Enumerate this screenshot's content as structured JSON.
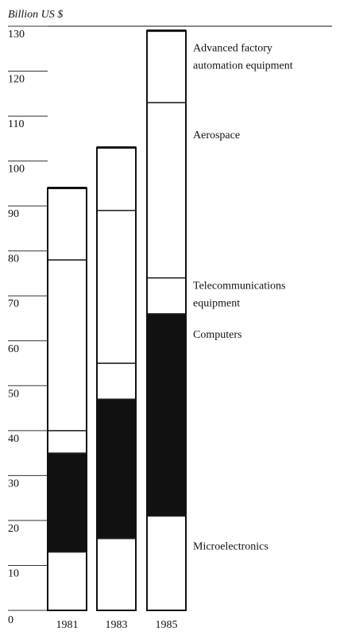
{
  "chart_data": {
    "type": "stacked_bar",
    "y_axis_label": "Billion US $",
    "categories": [
      "1981",
      "1983",
      "1985"
    ],
    "series": [
      {
        "name": "Microelectronics",
        "color": "#ffffff",
        "values": [
          13,
          16,
          21
        ]
      },
      {
        "name": "Computers",
        "color": "#111111",
        "values": [
          22,
          31,
          45
        ]
      },
      {
        "name": "Telecommunications equipment",
        "color": "#ffffff",
        "values": [
          5,
          8,
          8
        ]
      },
      {
        "name": "Aerospace",
        "color": "#ffffff",
        "values": [
          38,
          34,
          39
        ]
      },
      {
        "name": "Advanced factory automation equipment",
        "color": "#ffffff",
        "values": [
          16,
          14,
          16
        ]
      }
    ],
    "ylim": [
      0,
      130
    ],
    "yticks": [
      0,
      10,
      20,
      30,
      40,
      50,
      60,
      70,
      80,
      90,
      100,
      110,
      120,
      130
    ]
  }
}
